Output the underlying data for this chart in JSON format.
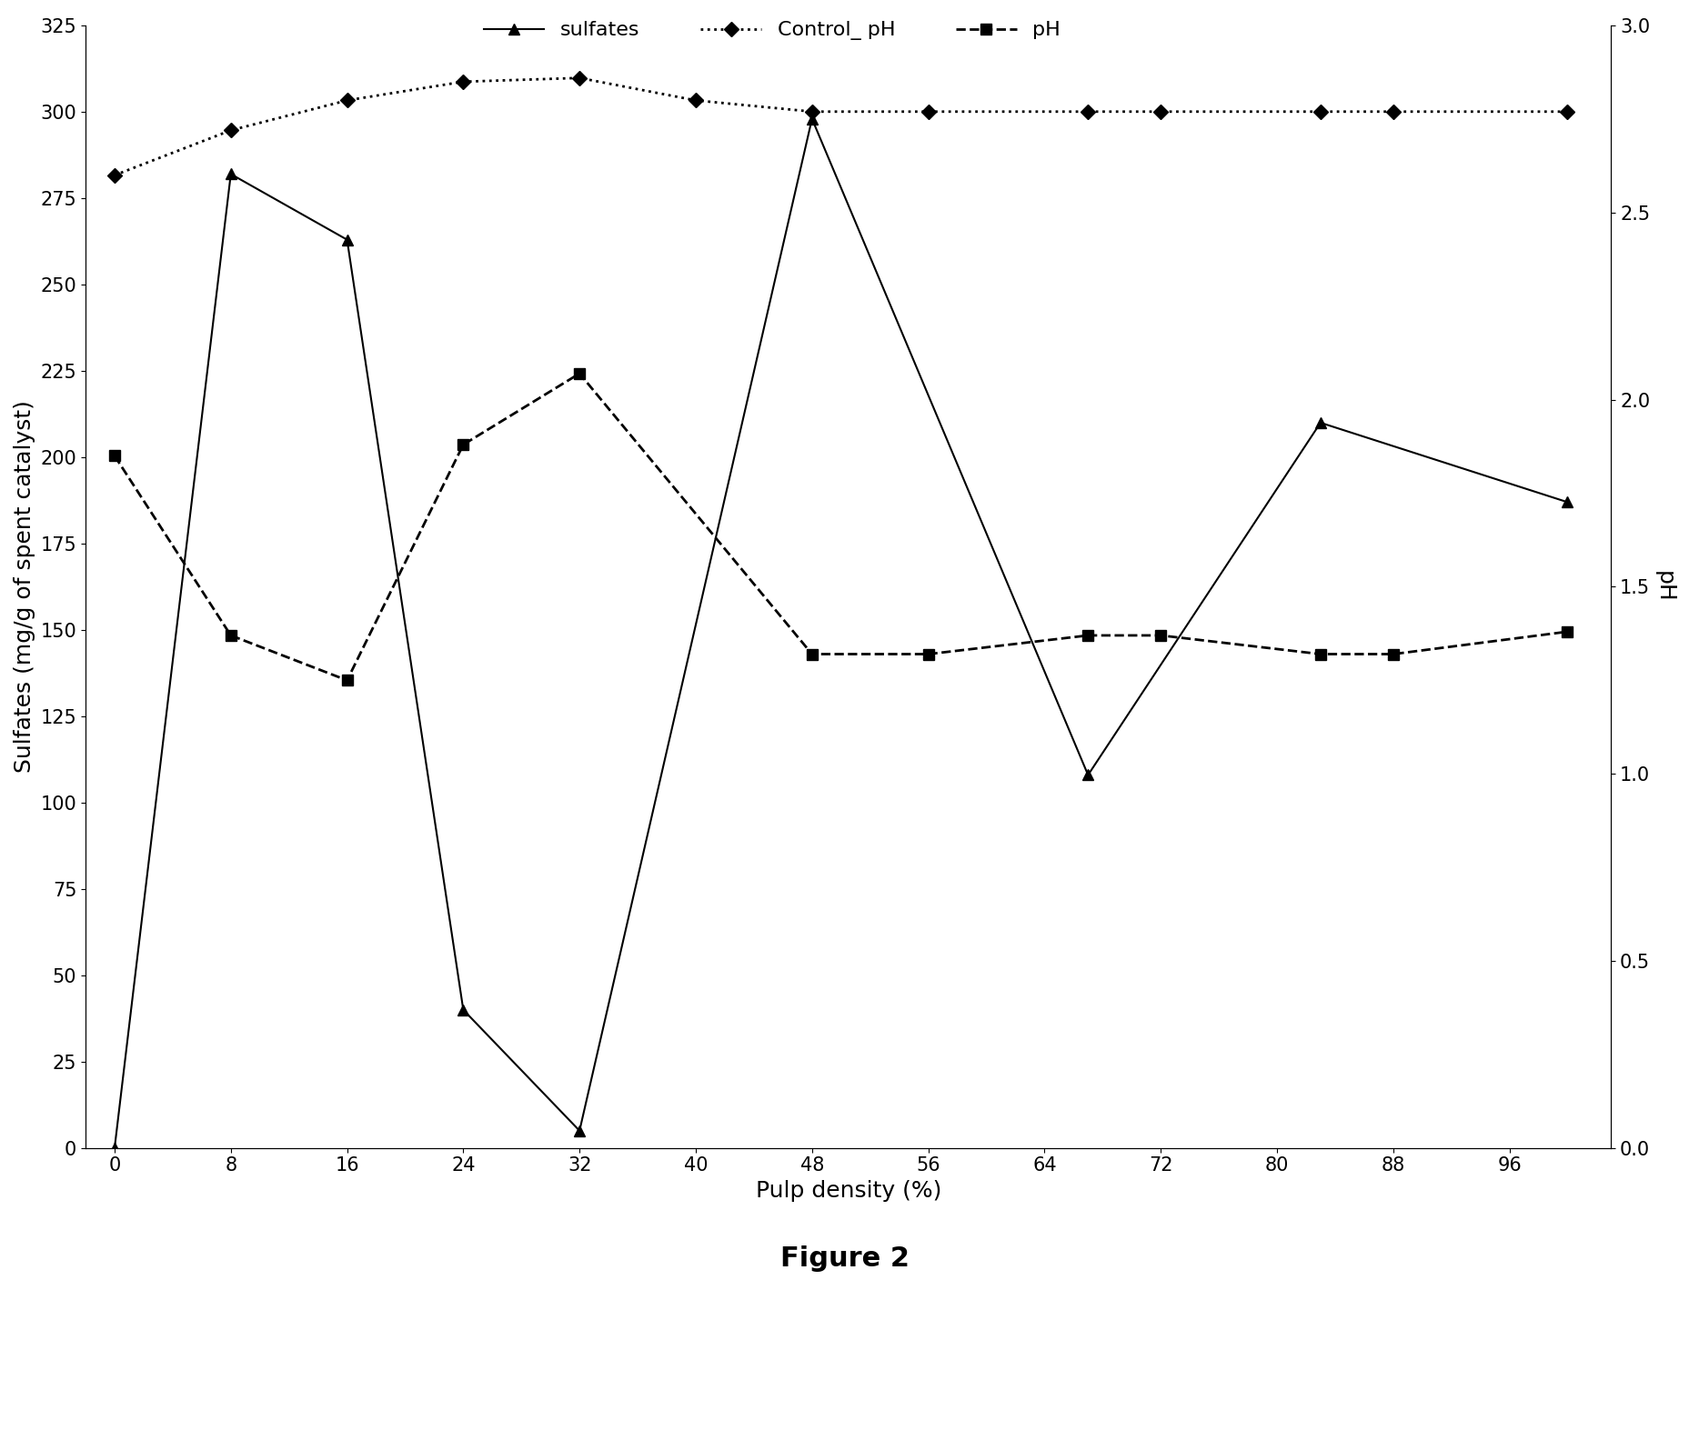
{
  "x_sulfates": [
    0,
    8,
    16,
    24,
    32,
    48,
    67,
    83,
    100
  ],
  "y_sulfates": [
    0,
    282,
    263,
    40,
    5,
    298,
    108,
    210,
    187
  ],
  "x_control_ph": [
    0,
    8,
    16,
    24,
    32,
    40,
    48,
    56,
    67,
    72,
    83,
    88,
    100
  ],
  "y_control_ph": [
    2.6,
    2.72,
    2.8,
    2.85,
    2.86,
    2.8,
    2.77,
    2.77,
    2.77,
    2.77,
    2.77,
    2.77,
    2.77
  ],
  "x_ph": [
    0,
    8,
    16,
    24,
    32,
    48,
    56,
    67,
    72,
    83,
    88,
    100
  ],
  "y_ph": [
    1.85,
    1.37,
    1.25,
    1.88,
    2.07,
    1.32,
    1.32,
    1.37,
    1.37,
    1.32,
    1.32,
    1.38
  ],
  "xlabel": "Pulp density (%)",
  "ylabel_left": "Sulfates (mg/g of spent catalyst)",
  "ylabel_right": "pH",
  "ylim_left": [
    0,
    325
  ],
  "ylim_right": [
    0,
    3
  ],
  "yticks_left": [
    0,
    25,
    50,
    75,
    100,
    125,
    150,
    175,
    200,
    225,
    250,
    275,
    300,
    325
  ],
  "yticks_right": [
    0,
    0.5,
    1,
    1.5,
    2,
    2.5,
    3
  ],
  "xticks": [
    0,
    8,
    16,
    24,
    32,
    40,
    48,
    56,
    64,
    72,
    80,
    88,
    96
  ],
  "xlim": [
    -2,
    103
  ],
  "caption": "Figure 2",
  "legend_sulfates": "sulfates",
  "legend_control_ph": "Control_ pH",
  "legend_ph": "pH"
}
